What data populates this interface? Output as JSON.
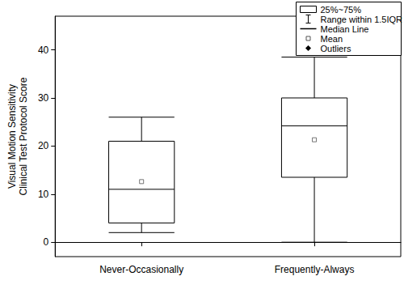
{
  "chart_data": {
    "type": "boxplot",
    "y_label": "Visual Motion Sensitivity\nClinical Test Protocol Score",
    "categories": [
      "Never-Occasionally",
      "Frequently-Always"
    ],
    "boxes": [
      {
        "low": 2,
        "q1": 4,
        "median": 11,
        "q3": 21,
        "high": 26
      },
      {
        "low": 0,
        "q1": 13.5,
        "median": 24.2,
        "q3": 30,
        "high": 38.5
      }
    ],
    "means": [
      12.6,
      21.3
    ],
    "mean_marker": "square",
    "color": "#000000",
    "ylim": [
      -3,
      47
    ],
    "yticks": [
      0,
      10,
      20,
      30,
      40
    ],
    "grid": false,
    "legend": "upper right",
    "legend_entries": [
      {
        "label": "25%~75%",
        "marker": "box"
      },
      {
        "label": "Range within 1.5IQR",
        "marker": "whisker"
      },
      {
        "label": "Median Line",
        "marker": "line"
      },
      {
        "label": "Mean",
        "marker": "square"
      },
      {
        "label": "Outliers",
        "marker": "diamond"
      }
    ]
  }
}
